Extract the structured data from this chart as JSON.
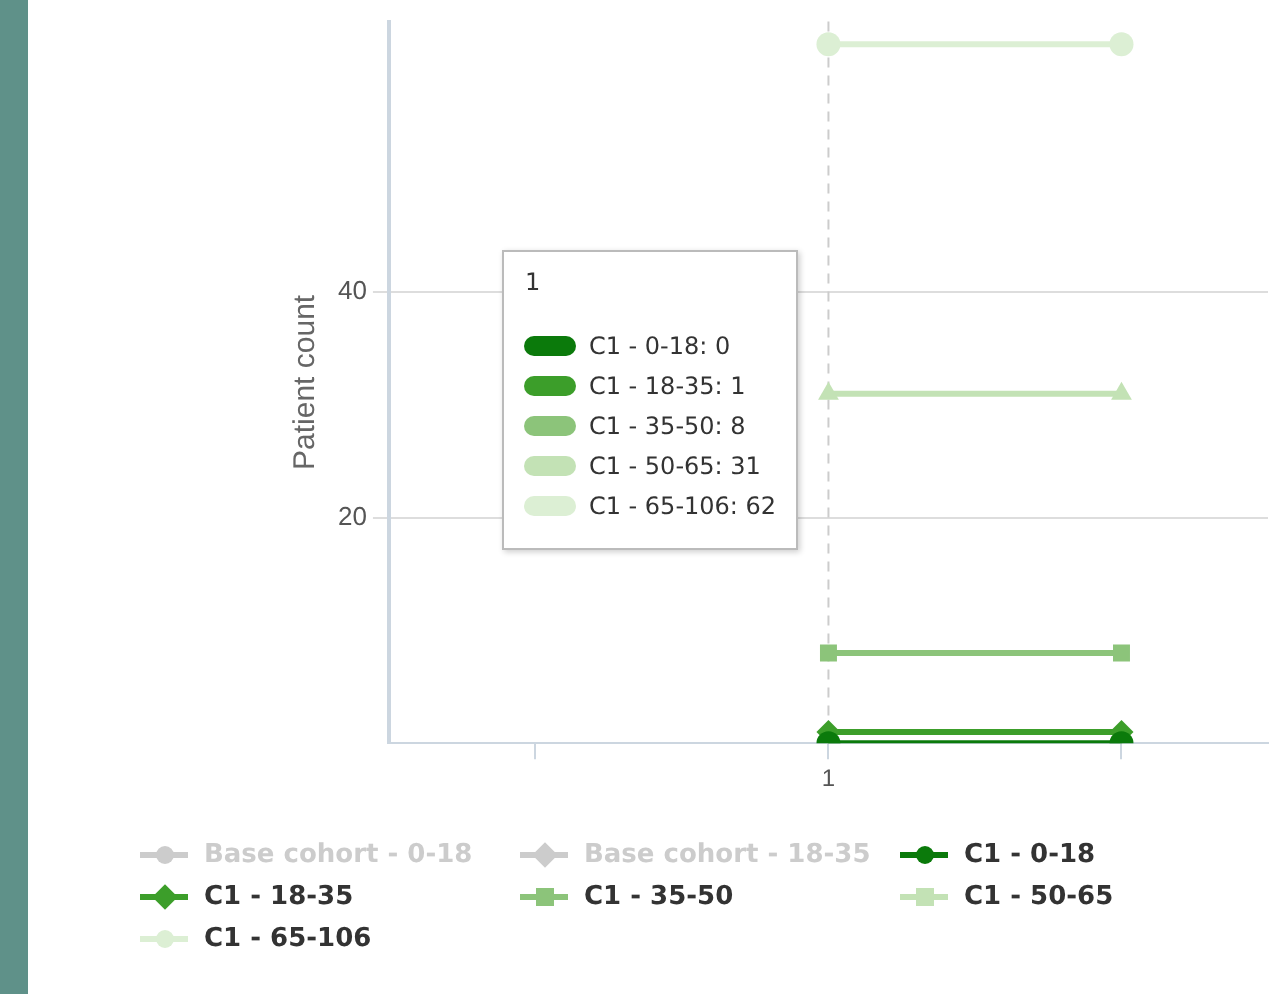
{
  "chart_data": {
    "type": "line",
    "ylabel": "Patient count",
    "categories": [
      null,
      "1",
      null
    ],
    "ref_lines": [
      {
        "axis": "x",
        "value": "1",
        "line_style": "dashed",
        "color": "#cccccc"
      }
    ],
    "ylim": [
      0,
      64
    ],
    "yticks": [
      20,
      40
    ],
    "grid": "y",
    "legend": "bottom",
    "annotations": [
      "C1 - 0-18: 0",
      "C1 - 18-35: 1",
      "C1 - 35-50: 8",
      "C1 - 50-65: 31",
      "C1 - 65-106: 62"
    ],
    "series": [
      {
        "name": "Base cohort - 0-18",
        "color": "#cccccc",
        "marker": "circle",
        "values": [
          null,
          null,
          null
        ]
      },
      {
        "name": "Base cohort - 18-35",
        "color": "#cccccc",
        "marker": "diamond",
        "values": [
          null,
          null,
          null
        ]
      },
      {
        "name": "C1 - 0-18",
        "color": "#0b7a0b",
        "marker": "circle",
        "values": [
          null,
          0,
          0
        ]
      },
      {
        "name": "C1 - 18-35",
        "color": "#3c9e2a",
        "marker": "diamond",
        "values": [
          null,
          1,
          1
        ]
      },
      {
        "name": "C1 - 35-50",
        "color": "#8cc47a",
        "marker": "square",
        "values": [
          null,
          8,
          8
        ]
      },
      {
        "name": "C1 - 50-65",
        "color": "#c3e2b5",
        "marker": "triangle",
        "values": [
          null,
          31,
          31
        ]
      },
      {
        "name": "C1 - 65-106",
        "color": "#dcefd4",
        "marker": "circle",
        "values": [
          null,
          62,
          62
        ]
      }
    ]
  }
}
